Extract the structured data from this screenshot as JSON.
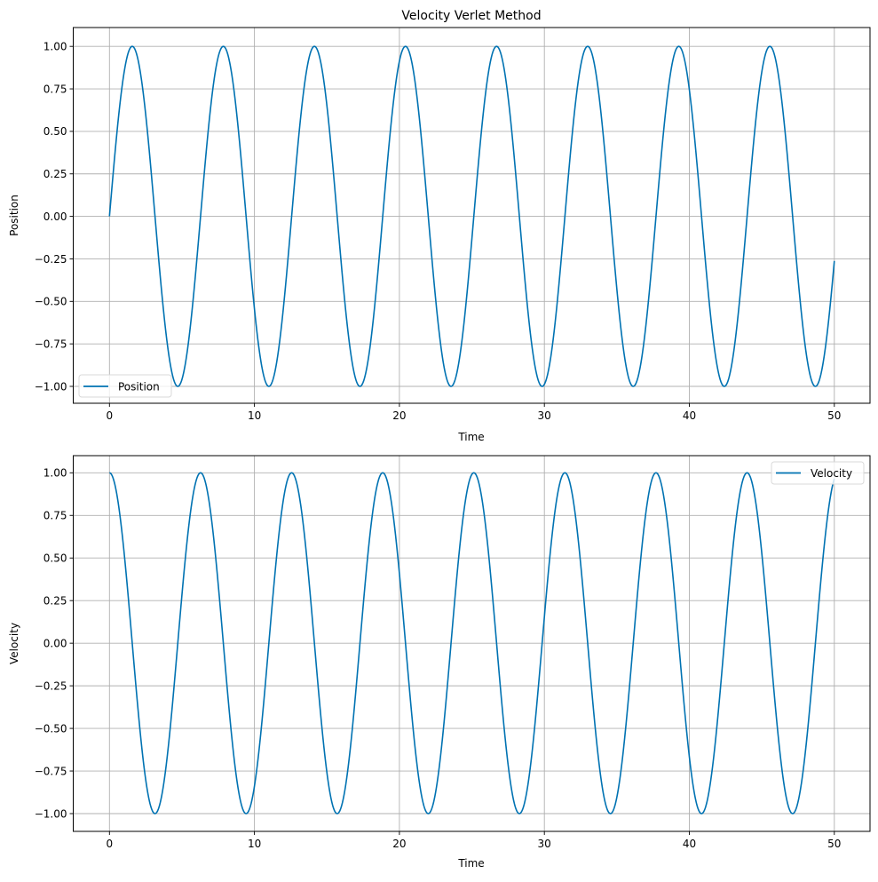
{
  "figure": {
    "title": "Velocity Verlet Method",
    "line_color": "#0072B2",
    "grid_color": "#b0b0b0"
  },
  "chart_data": [
    {
      "type": "line",
      "title": "Velocity Verlet Method",
      "xlabel": "Time",
      "ylabel": "Position",
      "xlim": [
        -3,
        52.5
      ],
      "ylim": [
        -1.1,
        1.1
      ],
      "xticks": [
        0,
        10,
        20,
        30,
        40,
        50
      ],
      "xtick_labels": [
        "0",
        "10",
        "20",
        "30",
        "40",
        "50"
      ],
      "yticks": [
        1.0,
        0.75,
        0.5,
        0.25,
        0.0,
        -0.25,
        -0.5,
        -0.75,
        -1.0
      ],
      "ytick_labels": [
        "1.00",
        "0.75",
        "0.50",
        "0.25",
        "0.00",
        "−0.25",
        "−0.50",
        "−0.75",
        "−1.00"
      ],
      "grid": true,
      "legend_position": "lower left",
      "series": [
        {
          "name": "Position",
          "function": "sin(t)",
          "t_range": [
            0,
            50
          ],
          "start_value": 0.0,
          "end_value": -0.26,
          "amplitude": 1.0,
          "period": 6.283,
          "peaks_t": [
            1.57,
            7.85,
            14.14,
            20.42,
            26.7,
            32.99,
            39.27,
            45.55
          ],
          "troughs_t": [
            4.71,
            10.99,
            17.28,
            23.56,
            29.85,
            36.13,
            42.41,
            48.69
          ]
        }
      ]
    },
    {
      "type": "line",
      "title": "",
      "xlabel": "Time",
      "ylabel": "Velocity",
      "xlim": [
        -3,
        52.5
      ],
      "ylim": [
        -1.1,
        1.1
      ],
      "xticks": [
        0,
        10,
        20,
        30,
        40,
        50
      ],
      "xtick_labels": [
        "0",
        "10",
        "20",
        "30",
        "40",
        "50"
      ],
      "yticks": [
        1.0,
        0.75,
        0.5,
        0.25,
        0.0,
        -0.25,
        -0.5,
        -0.75,
        -1.0
      ],
      "ytick_labels": [
        "1.00",
        "0.75",
        "0.50",
        "0.25",
        "0.00",
        "−0.25",
        "−0.50",
        "−0.75",
        "−1.00"
      ],
      "grid": true,
      "legend_position": "upper right",
      "series": [
        {
          "name": "Velocity",
          "function": "cos(t)",
          "t_range": [
            0,
            50
          ],
          "start_value": 1.0,
          "end_value": 0.96,
          "amplitude": 1.0,
          "period": 6.283,
          "peaks_t": [
            0.0,
            6.28,
            12.57,
            18.85,
            25.13,
            31.42,
            37.7,
            43.98
          ],
          "troughs_t": [
            3.14,
            9.42,
            15.71,
            21.99,
            28.27,
            34.56,
            40.84,
            47.12
          ]
        }
      ]
    }
  ]
}
